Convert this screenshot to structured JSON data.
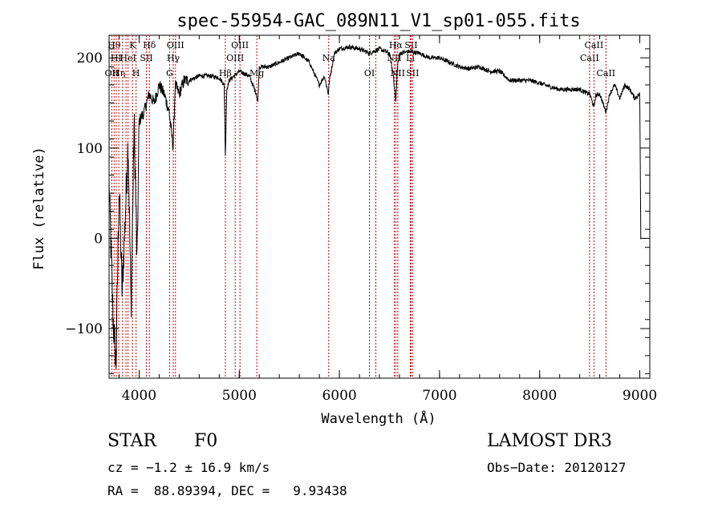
{
  "chart_data": {
    "type": "line",
    "title": "spec-55954-GAC_089N11_V1_sp01-055.fits",
    "xlabel": "Wavelength (Å)",
    "ylabel": "Flux (relative)",
    "xlim": [
      3700,
      9100
    ],
    "ylim": [
      -155,
      225
    ],
    "xticks": [
      4000,
      5000,
      6000,
      7000,
      8000,
      9000
    ],
    "yticks": [
      -100,
      0,
      100,
      200
    ],
    "line_color": "#000000",
    "marker_color": "#cc0000",
    "series": [
      {
        "name": "flux",
        "x": [
          3700,
          3740,
          3770,
          3800,
          3830,
          3860,
          3890,
          3920,
          3950,
          3980,
          4000,
          4050,
          4100,
          4150,
          4200,
          4250,
          4300,
          4330,
          4340,
          4360,
          4400,
          4450,
          4500,
          4600,
          4700,
          4800,
          4850,
          4861,
          4875,
          4900,
          5000,
          5100,
          5170,
          5185,
          5200,
          5300,
          5400,
          5500,
          5600,
          5700,
          5780,
          5800,
          5850,
          5890,
          5900,
          5950,
          6000,
          6100,
          6200,
          6300,
          6400,
          6500,
          6540,
          6563,
          6580,
          6600,
          6700,
          6800,
          6900,
          7000,
          7100,
          7200,
          7300,
          7400,
          7500,
          7600,
          7700,
          7800,
          7900,
          8000,
          8100,
          8200,
          8300,
          8400,
          8450,
          8500,
          8542,
          8560,
          8600,
          8662,
          8700,
          8750,
          8800,
          8850,
          8900,
          8950,
          9000,
          9010
        ],
        "values": [
          60,
          -90,
          -140,
          60,
          -60,
          20,
          110,
          -80,
          130,
          -30,
          130,
          140,
          160,
          150,
          170,
          160,
          140,
          110,
          100,
          170,
          160,
          175,
          175,
          180,
          180,
          178,
          170,
          90,
          165,
          175,
          185,
          180,
          160,
          150,
          190,
          190,
          195,
          200,
          205,
          195,
          175,
          170,
          180,
          160,
          175,
          205,
          210,
          212,
          210,
          205,
          210,
          205,
          180,
          150,
          190,
          205,
          207,
          205,
          200,
          200,
          195,
          190,
          188,
          190,
          185,
          185,
          175,
          175,
          175,
          172,
          168,
          165,
          165,
          165,
          162,
          160,
          145,
          158,
          160,
          140,
          160,
          170,
          155,
          170,
          165,
          155,
          160,
          0
        ]
      }
    ],
    "lines": [
      {
        "wl": 3727,
        "label": "OII",
        "row": 2
      },
      {
        "wl": 3750,
        "label": "Hθ",
        "row": 0
      },
      {
        "wl": 3771,
        "label": "HI",
        "row": 1
      },
      {
        "wl": 3797,
        "label": "Hη",
        "row": 2
      },
      {
        "wl": 3835,
        "label": "",
        "row": 0
      },
      {
        "wl": 3869,
        "label": "",
        "row": 0
      },
      {
        "wl": 3889,
        "label": "HeI",
        "row": 1
      },
      {
        "wl": 3934,
        "label": "K",
        "row": 0
      },
      {
        "wl": 3969,
        "label": "H",
        "row": 2
      },
      {
        "wl": 4072,
        "label": "SII",
        "row": 1
      },
      {
        "wl": 4102,
        "label": "Hδ",
        "row": 0
      },
      {
        "wl": 4304,
        "label": "G",
        "row": 2
      },
      {
        "wl": 4341,
        "label": "Hγ",
        "row": 1
      },
      {
        "wl": 4363,
        "label": "OIII",
        "row": 0
      },
      {
        "wl": 4861,
        "label": "Hβ",
        "row": 2
      },
      {
        "wl": 4959,
        "label": "OIII",
        "row": 1
      },
      {
        "wl": 5007,
        "label": "OIII",
        "row": 0
      },
      {
        "wl": 5175,
        "label": "Mg",
        "row": 2
      },
      {
        "wl": 5893,
        "label": "Na",
        "row": 1
      },
      {
        "wl": 6300,
        "label": "OI",
        "row": 2
      },
      {
        "wl": 6364,
        "label": "",
        "row": 0
      },
      {
        "wl": 6548,
        "label": "NII",
        "row": 1
      },
      {
        "wl": 6563,
        "label": "Hα",
        "row": 0
      },
      {
        "wl": 6583,
        "label": "NII",
        "row": 2
      },
      {
        "wl": 6708,
        "label": "Li",
        "row": 1
      },
      {
        "wl": 6716,
        "label": "SII",
        "row": 0
      },
      {
        "wl": 6731,
        "label": "SII",
        "row": 2
      },
      {
        "wl": 8498,
        "label": "CaII",
        "row": 1
      },
      {
        "wl": 8542,
        "label": "CaII",
        "row": 0
      },
      {
        "wl": 8662,
        "label": "CaII",
        "row": 2
      }
    ]
  },
  "info": {
    "class_label": "STAR",
    "subclass": "F0",
    "survey": "LAMOST DR3",
    "cz": "cz = −1.2 ± 16.9 km/s",
    "obs_date": "Obs−Date: 20120127",
    "coords": "RA =  88.89394, DEC =   9.93438"
  }
}
